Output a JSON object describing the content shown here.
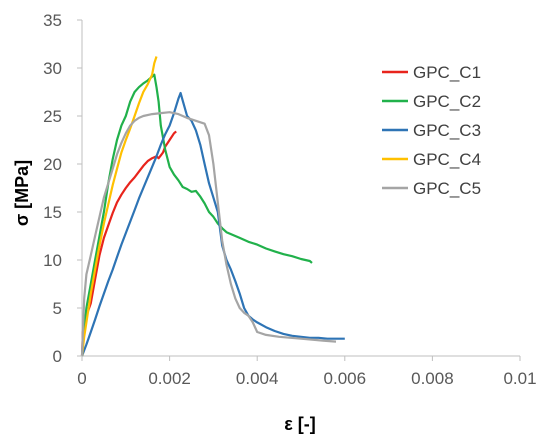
{
  "chart_data": {
    "type": "line",
    "title": "",
    "xlabel": "ε [-]",
    "ylabel": "σ [MPa]",
    "xlim": [
      0,
      0.01
    ],
    "ylim": [
      0,
      35
    ],
    "x_ticks": [
      "0",
      "0.002",
      "0.004",
      "0.006",
      "0.008",
      "0.01"
    ],
    "y_ticks": [
      "0",
      "5",
      "10",
      "15",
      "20",
      "25",
      "30",
      "35"
    ],
    "grid": false,
    "legend_position": "right",
    "series": [
      {
        "name": "GPC_C1",
        "color": "#e8241c",
        "points": [
          [
            0,
            0
          ],
          [
            2e-05,
            2.5
          ],
          [
            5e-05,
            3.2
          ],
          [
            0.0001,
            4.2
          ],
          [
            0.0002,
            5.5
          ],
          [
            0.0003,
            8.0
          ],
          [
            0.0004,
            10.5
          ],
          [
            0.0005,
            12.3
          ],
          [
            0.0006,
            13.6
          ],
          [
            0.0007,
            14.9
          ],
          [
            0.0008,
            16.0
          ],
          [
            0.0009,
            16.8
          ],
          [
            0.001,
            17.5
          ],
          [
            0.0011,
            18.1
          ],
          [
            0.0012,
            18.6
          ],
          [
            0.0013,
            19.2
          ],
          [
            0.0014,
            19.8
          ],
          [
            0.0015,
            20.3
          ],
          [
            0.0016,
            20.6
          ],
          [
            0.0017,
            20.8
          ],
          [
            0.00175,
            20.6
          ],
          [
            0.0018,
            20.9
          ],
          [
            0.00185,
            21.2
          ],
          [
            0.0019,
            21.8
          ],
          [
            0.002,
            22.5
          ],
          [
            0.0021,
            23.2
          ],
          [
            0.00215,
            23.4
          ]
        ]
      },
      {
        "name": "GPC_C2",
        "color": "#21b14b",
        "points": [
          [
            0,
            0
          ],
          [
            5e-05,
            3.0
          ],
          [
            0.0001,
            5.0
          ],
          [
            0.0002,
            7.5
          ],
          [
            0.0003,
            10.0
          ],
          [
            0.0004,
            12.5
          ],
          [
            0.0005,
            15.0
          ],
          [
            0.0006,
            18.0
          ],
          [
            0.0007,
            20.5
          ],
          [
            0.0008,
            22.5
          ],
          [
            0.0009,
            24.0
          ],
          [
            0.001,
            25.0
          ],
          [
            0.0011,
            26.5
          ],
          [
            0.0012,
            27.5
          ],
          [
            0.0013,
            28.0
          ],
          [
            0.0014,
            28.4
          ],
          [
            0.0015,
            28.7
          ],
          [
            0.0016,
            29.1
          ],
          [
            0.00165,
            29.3
          ],
          [
            0.0017,
            28.0
          ],
          [
            0.00175,
            26.5
          ],
          [
            0.0018,
            24.0
          ],
          [
            0.0019,
            21.5
          ],
          [
            0.002,
            19.7
          ],
          [
            0.0021,
            18.9
          ],
          [
            0.0022,
            18.3
          ],
          [
            0.0023,
            17.6
          ],
          [
            0.0024,
            17.4
          ],
          [
            0.0025,
            17.1
          ],
          [
            0.0026,
            17.2
          ],
          [
            0.0027,
            16.6
          ],
          [
            0.0028,
            15.9
          ],
          [
            0.0029,
            15.0
          ],
          [
            0.003,
            14.5
          ],
          [
            0.0031,
            13.8
          ],
          [
            0.0032,
            13.3
          ],
          [
            0.0033,
            12.9
          ],
          [
            0.0034,
            12.7
          ],
          [
            0.0036,
            12.3
          ],
          [
            0.0038,
            11.9
          ],
          [
            0.004,
            11.6
          ],
          [
            0.0042,
            11.2
          ],
          [
            0.0044,
            10.9
          ],
          [
            0.0046,
            10.6
          ],
          [
            0.0048,
            10.4
          ],
          [
            0.005,
            10.1
          ],
          [
            0.0052,
            9.9
          ],
          [
            0.00525,
            9.7
          ]
        ]
      },
      {
        "name": "GPC_C3",
        "color": "#2e74b5",
        "points": [
          [
            0,
            0
          ],
          [
            0.0001,
            1.2
          ],
          [
            0.0002,
            2.5
          ],
          [
            0.0003,
            3.8
          ],
          [
            0.0004,
            5.2
          ],
          [
            0.0005,
            6.5
          ],
          [
            0.0006,
            7.8
          ],
          [
            0.0007,
            9.0
          ],
          [
            0.0008,
            10.3
          ],
          [
            0.0009,
            11.6
          ],
          [
            0.001,
            12.8
          ],
          [
            0.0011,
            14.0
          ],
          [
            0.0012,
            15.2
          ],
          [
            0.0013,
            16.4
          ],
          [
            0.0014,
            17.5
          ],
          [
            0.0015,
            18.6
          ],
          [
            0.0016,
            19.7
          ],
          [
            0.0017,
            20.8
          ],
          [
            0.0018,
            22.0
          ],
          [
            0.0019,
            23.1
          ],
          [
            0.002,
            24.0
          ],
          [
            0.0021,
            25.3
          ],
          [
            0.0022,
            26.8
          ],
          [
            0.00225,
            27.4
          ],
          [
            0.0023,
            26.6
          ],
          [
            0.0024,
            25.0
          ],
          [
            0.0025,
            24.5
          ],
          [
            0.0026,
            23.5
          ],
          [
            0.0027,
            22.0
          ],
          [
            0.0028,
            20.0
          ],
          [
            0.0029,
            18.0
          ],
          [
            0.003,
            16.5
          ],
          [
            0.0031,
            15.0
          ],
          [
            0.0032,
            11.5
          ],
          [
            0.0033,
            10.0
          ],
          [
            0.0034,
            9.0
          ],
          [
            0.0035,
            7.8
          ],
          [
            0.0036,
            6.5
          ],
          [
            0.0037,
            5.0
          ],
          [
            0.0038,
            4.2
          ],
          [
            0.0039,
            3.8
          ],
          [
            0.004,
            3.5
          ],
          [
            0.0042,
            3.0
          ],
          [
            0.0044,
            2.6
          ],
          [
            0.0046,
            2.3
          ],
          [
            0.0048,
            2.1
          ],
          [
            0.005,
            2.0
          ],
          [
            0.0052,
            1.9
          ],
          [
            0.0054,
            1.9
          ],
          [
            0.0056,
            1.8
          ],
          [
            0.0058,
            1.8
          ],
          [
            0.006,
            1.8
          ]
        ]
      },
      {
        "name": "GPC_C4",
        "color": "#ffc000",
        "points": [
          [
            0,
            0
          ],
          [
            5e-05,
            2.0
          ],
          [
            0.0001,
            3.5
          ],
          [
            0.0002,
            6.5
          ],
          [
            0.0003,
            9.0
          ],
          [
            0.0004,
            11.5
          ],
          [
            0.0005,
            13.8
          ],
          [
            0.0006,
            15.8
          ],
          [
            0.0007,
            17.8
          ],
          [
            0.0008,
            19.5
          ],
          [
            0.0009,
            21.2
          ],
          [
            0.001,
            22.5
          ],
          [
            0.0011,
            23.7
          ],
          [
            0.0012,
            25.0
          ],
          [
            0.0013,
            26.3
          ],
          [
            0.0014,
            27.5
          ],
          [
            0.0015,
            28.3
          ],
          [
            0.0016,
            29.3
          ],
          [
            0.00165,
            30.5
          ],
          [
            0.0017,
            31.2
          ]
        ]
      },
      {
        "name": "GPC_C5",
        "color": "#a5a5a5",
        "points": [
          [
            0,
            0
          ],
          [
            5e-05,
            6.0
          ],
          [
            0.0001,
            8.5
          ],
          [
            0.0002,
            10.5
          ],
          [
            0.0003,
            12.5
          ],
          [
            0.0004,
            14.5
          ],
          [
            0.0005,
            16.5
          ],
          [
            0.0006,
            18.0
          ],
          [
            0.0007,
            19.5
          ],
          [
            0.0008,
            21.0
          ],
          [
            0.0009,
            22.2
          ],
          [
            0.001,
            23.2
          ],
          [
            0.0011,
            24.0
          ],
          [
            0.0012,
            24.5
          ],
          [
            0.0013,
            24.8
          ],
          [
            0.0014,
            25.0
          ],
          [
            0.0016,
            25.2
          ],
          [
            0.0018,
            25.3
          ],
          [
            0.002,
            25.4
          ],
          [
            0.0022,
            25.2
          ],
          [
            0.0024,
            24.8
          ],
          [
            0.0026,
            24.5
          ],
          [
            0.0028,
            24.2
          ],
          [
            0.0029,
            23.0
          ],
          [
            0.003,
            20.0
          ],
          [
            0.0031,
            16.0
          ],
          [
            0.0032,
            12.0
          ],
          [
            0.0033,
            9.5
          ],
          [
            0.0034,
            7.5
          ],
          [
            0.0035,
            6.0
          ],
          [
            0.0036,
            5.0
          ],
          [
            0.0037,
            4.5
          ],
          [
            0.0038,
            4.2
          ],
          [
            0.0039,
            3.5
          ],
          [
            0.004,
            2.5
          ],
          [
            0.0042,
            2.2
          ],
          [
            0.0045,
            2.0
          ],
          [
            0.005,
            1.8
          ],
          [
            0.0055,
            1.6
          ],
          [
            0.0058,
            1.5
          ]
        ]
      }
    ]
  }
}
